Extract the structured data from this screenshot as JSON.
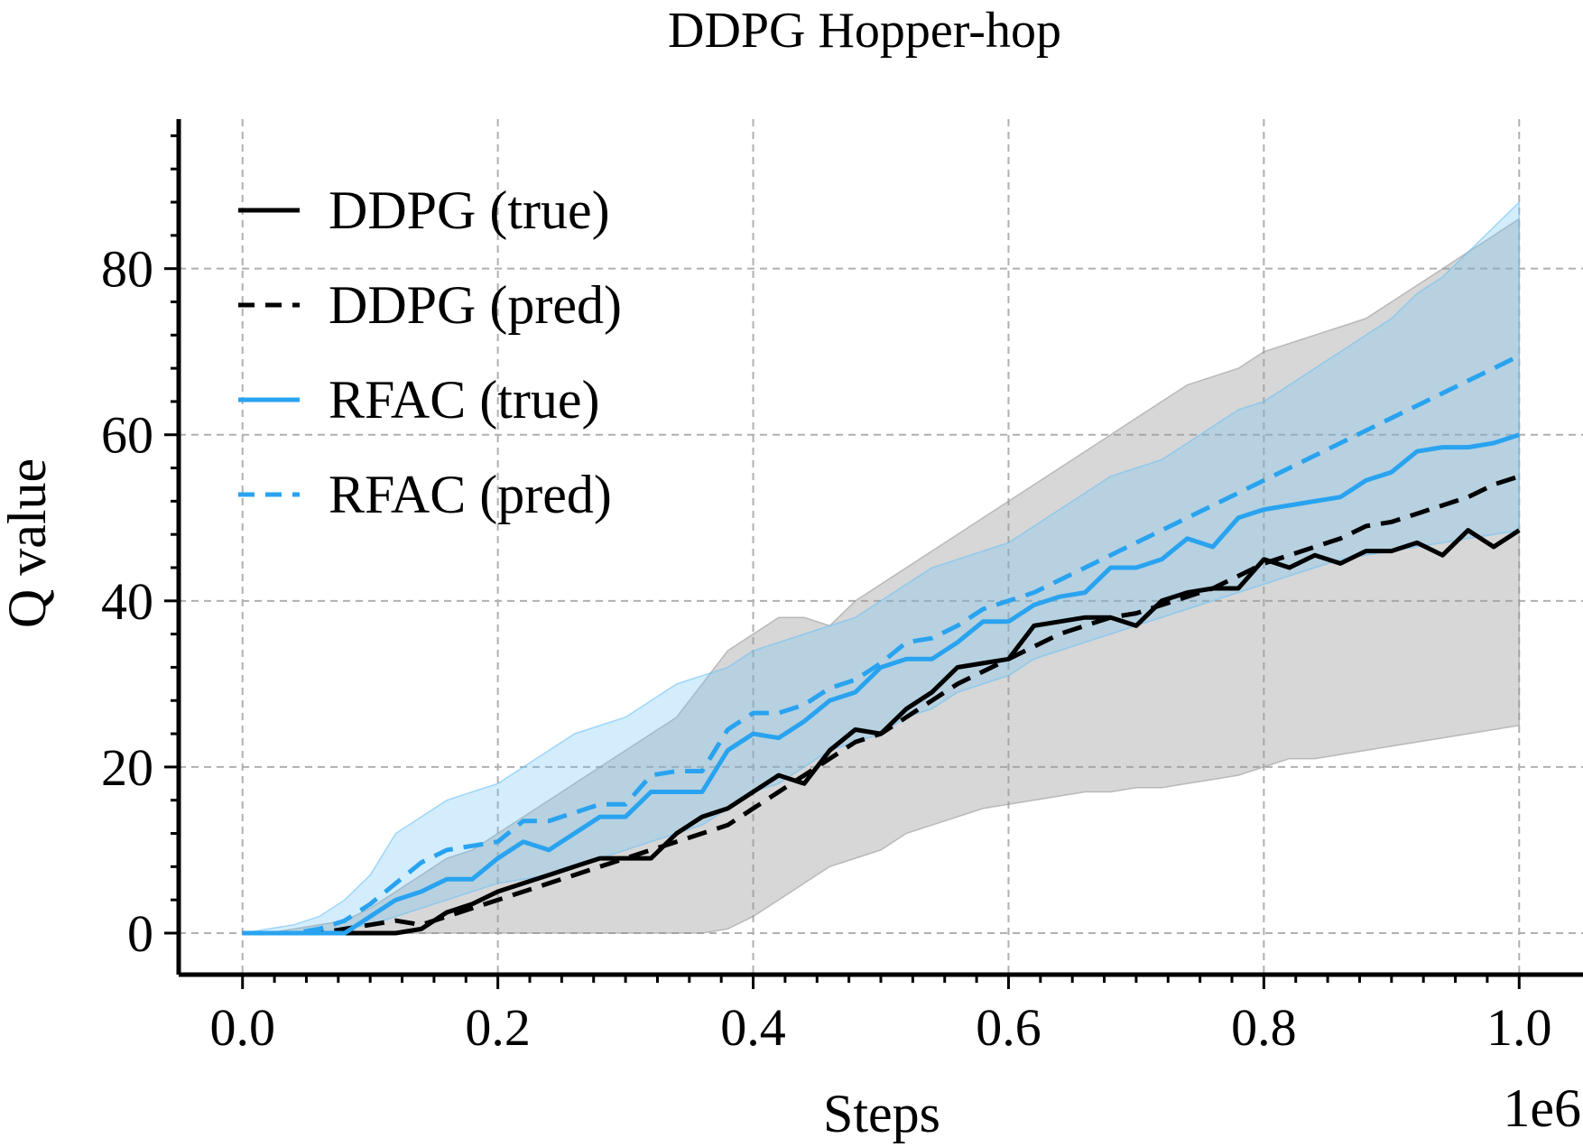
{
  "chart_data": {
    "type": "line",
    "title": "DDPG Hopper-hop",
    "xlabel": "Steps",
    "ylabel": "Q value",
    "x_offset_label": "1e6",
    "xlim": [
      -0.05,
      1.05
    ],
    "ylim": [
      -5,
      98
    ],
    "xticks": [
      0.0,
      0.2,
      0.4,
      0.6,
      0.8,
      1.0
    ],
    "xtick_labels": [
      "0.0",
      "0.2",
      "0.4",
      "0.6",
      "0.8",
      "1.0"
    ],
    "yticks": [
      0,
      20,
      40,
      60,
      80
    ],
    "ytick_labels": [
      "0",
      "20",
      "40",
      "60",
      "80"
    ],
    "grid": true,
    "legend_position": "upper left",
    "x": [
      0.0,
      0.02,
      0.04,
      0.06,
      0.08,
      0.1,
      0.12,
      0.14,
      0.16,
      0.18,
      0.2,
      0.22,
      0.24,
      0.26,
      0.28,
      0.3,
      0.32,
      0.34,
      0.36,
      0.38,
      0.4,
      0.42,
      0.44,
      0.46,
      0.48,
      0.5,
      0.52,
      0.54,
      0.56,
      0.58,
      0.6,
      0.62,
      0.64,
      0.66,
      0.68,
      0.7,
      0.72,
      0.74,
      0.76,
      0.78,
      0.8,
      0.82,
      0.84,
      0.86,
      0.88,
      0.9,
      0.92,
      0.94,
      0.96,
      0.98,
      1.0
    ],
    "series": [
      {
        "name": "DDPG (true)",
        "color": "#000000",
        "dashed": false,
        "values": [
          0,
          0,
          0,
          0,
          0,
          0,
          0,
          0.5,
          2.5,
          3.5,
          5,
          6,
          7,
          8,
          9,
          9,
          9,
          12,
          14,
          15,
          17,
          19,
          18,
          22,
          24.5,
          24,
          27,
          29,
          32,
          32.5,
          33,
          37,
          37.5,
          38,
          38,
          37,
          40,
          41,
          41.5,
          41.5,
          45,
          44,
          45.5,
          44.5,
          46,
          46,
          47,
          45.5,
          48.5,
          46.5,
          48.5
        ],
        "band_lower": [
          0,
          0,
          0,
          0,
          0,
          0,
          0,
          0,
          0,
          0,
          0,
          0,
          0,
          0,
          0,
          0,
          0,
          0,
          0,
          0.5,
          2,
          4,
          6,
          8,
          9,
          10,
          12,
          13,
          14,
          15,
          15.5,
          16,
          16.5,
          17,
          17,
          17.5,
          17.5,
          18,
          18.5,
          19,
          20,
          21,
          21,
          21.5,
          22,
          22.5,
          23,
          23.5,
          24,
          24.5,
          25
        ],
        "band_upper": [
          0,
          0,
          0.5,
          1,
          1.5,
          3,
          5,
          7,
          9,
          10,
          12,
          14,
          16,
          18,
          20,
          22,
          24,
          26,
          30,
          34,
          36,
          38,
          38,
          37,
          40,
          42,
          44,
          46,
          48,
          50,
          52,
          54,
          56,
          58,
          60,
          62,
          64,
          66,
          67,
          68,
          70,
          71,
          72,
          73,
          74,
          76,
          78,
          80,
          82,
          84,
          86
        ]
      },
      {
        "name": "DDPG (pred)",
        "color": "#000000",
        "dashed": true,
        "values": [
          0,
          0,
          0,
          0,
          0.5,
          1,
          1.5,
          1,
          2,
          3,
          4,
          5,
          6,
          7,
          8,
          9,
          10,
          11,
          12,
          13,
          15,
          17,
          19,
          21,
          23,
          24,
          26,
          28,
          30,
          31.5,
          33,
          34.5,
          36,
          37,
          38,
          38.5,
          39.5,
          40.5,
          41.5,
          43,
          44.5,
          45.5,
          46.5,
          47.5,
          49,
          49.5,
          50.5,
          51.5,
          52.5,
          54,
          55
        ]
      },
      {
        "name": "RFAC (true)",
        "color": "#29a3f0",
        "dashed": false,
        "values": [
          0,
          0,
          0,
          0,
          0,
          2,
          4,
          5,
          6.5,
          6.5,
          9,
          11,
          10,
          12,
          14,
          14,
          17,
          17,
          17,
          22,
          24,
          23.5,
          25.5,
          28,
          29,
          32,
          33,
          33,
          35,
          37.5,
          37.5,
          39.5,
          40.5,
          41,
          44,
          44,
          45,
          47.5,
          46.5,
          50,
          51,
          51.5,
          52,
          52.5,
          54.5,
          55.5,
          58,
          58.5,
          58.5,
          59,
          60
        ]
      },
      {
        "name": "RFAC (pred)",
        "color": "#29a3f0",
        "dashed": true,
        "values": [
          0,
          0,
          0,
          0.5,
          1.5,
          3.5,
          6,
          8.5,
          10,
          10.5,
          11,
          13.5,
          13.5,
          14.5,
          15.5,
          15.5,
          19,
          19.5,
          19.5,
          24.5,
          26.5,
          26.5,
          27.5,
          29.5,
          30.5,
          32.5,
          35,
          35.5,
          37,
          39,
          40,
          41,
          42.5,
          44,
          45.5,
          47,
          48.5,
          50,
          51.5,
          53,
          54.5,
          56,
          57.5,
          59,
          60.5,
          62,
          63.5,
          65,
          66.5,
          68,
          69.5
        ],
        "band_lower": [
          0,
          0,
          0,
          0,
          0.5,
          1,
          2,
          3,
          4,
          5,
          6,
          6.5,
          7,
          8,
          9,
          10,
          11,
          12,
          13,
          15,
          17,
          18,
          20,
          22,
          23,
          24,
          26,
          27,
          29,
          30,
          31,
          33,
          34,
          35,
          36,
          37,
          38,
          39,
          40,
          41,
          42,
          43,
          44,
          45,
          45.5,
          46,
          46.5,
          47,
          47.5,
          48,
          48.5
        ],
        "band_upper": [
          0,
          0.5,
          1,
          2,
          4,
          7,
          12,
          14,
          16,
          17,
          18,
          20,
          22,
          24,
          25,
          26,
          28,
          30,
          31,
          32,
          34,
          35,
          36,
          37,
          38,
          40,
          42,
          44,
          45,
          46,
          47,
          49,
          51,
          53,
          55,
          56,
          57,
          59,
          61,
          63,
          64,
          66,
          68,
          70,
          72,
          74,
          77,
          79,
          82,
          85,
          88
        ]
      }
    ]
  }
}
